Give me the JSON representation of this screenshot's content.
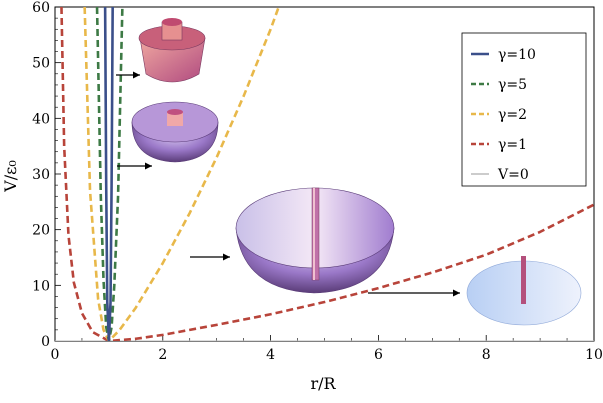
{
  "chart_data": {
    "type": "line",
    "xlabel": "r/R",
    "ylabel": "V/ε₀",
    "xlim": [
      0,
      10
    ],
    "ylim": [
      0,
      60
    ],
    "x_ticks": [
      "0",
      "2",
      "4",
      "6",
      "8",
      "10"
    ],
    "y_ticks": [
      "0",
      "10",
      "20",
      "30",
      "40",
      "50",
      "60"
    ],
    "grid": false,
    "legend_position": "top-right",
    "series": [
      {
        "name": "γ=10",
        "color": "#3b4f8a",
        "style": "solid",
        "x": [
          0.93,
          0.95,
          0.97,
          1.0,
          1.03,
          1.05,
          1.07
        ],
        "y": [
          60,
          28,
          7,
          0,
          7,
          28,
          60
        ]
      },
      {
        "name": "γ=5",
        "color": "#3d7a45",
        "style": "dashed",
        "x": [
          0.78,
          0.85,
          0.9,
          0.95,
          1.0,
          1.05,
          1.1,
          1.17,
          1.25
        ],
        "y": [
          60,
          26,
          11,
          2.5,
          0,
          2.5,
          10,
          26,
          60
        ]
      },
      {
        "name": "γ=2",
        "color": "#e8b84a",
        "style": "dashed",
        "x": [
          0.55,
          0.65,
          0.8,
          0.9,
          1.0,
          1.2,
          1.5,
          2.0,
          2.5,
          3.0,
          3.5,
          4.0,
          4.15
        ],
        "y": [
          60,
          27,
          7.5,
          2,
          0,
          2,
          6,
          14,
          23,
          33,
          44,
          56,
          60
        ]
      },
      {
        "name": "γ=1",
        "color": "#b8443a",
        "style": "dashed",
        "x": [
          0.12,
          0.17,
          0.25,
          0.35,
          0.5,
          0.7,
          1.0,
          1.5,
          2.0,
          3.0,
          4.0,
          5.0,
          6.0,
          7.0,
          8.0,
          9.0,
          10.0
        ],
        "y": [
          60,
          35,
          19,
          10.5,
          5,
          1.6,
          0,
          0.4,
          1.1,
          2.9,
          4.8,
          7.0,
          9.5,
          12.3,
          15.5,
          19.6,
          24.5
        ]
      },
      {
        "name": "V=0",
        "color": "#bbbbbb",
        "style": "solid",
        "x": [
          0,
          10
        ],
        "y": [
          0,
          0
        ]
      }
    ]
  }
}
